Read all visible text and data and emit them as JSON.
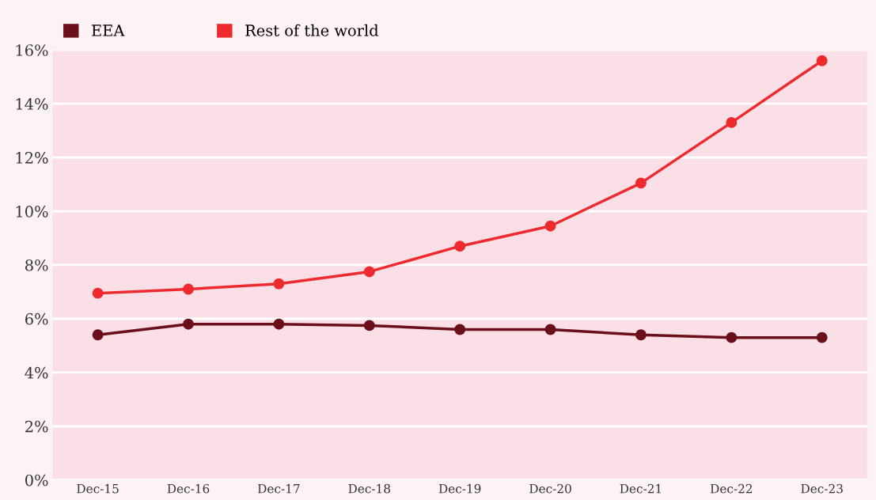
{
  "chart_data": {
    "type": "line",
    "categories": [
      "Dec-15",
      "Dec-16",
      "Dec-17",
      "Dec-18",
      "Dec-19",
      "Dec-20",
      "Dec-21",
      "Dec-22",
      "Dec-23"
    ],
    "series": [
      {
        "name": "EEA",
        "color": "#6b0f1a",
        "values": [
          5.4,
          5.8,
          5.8,
          5.75,
          5.6,
          5.6,
          5.4,
          5.3,
          5.3
        ]
      },
      {
        "name": "Rest of the world",
        "color": "#ee2a2f",
        "values": [
          6.95,
          7.1,
          7.3,
          7.75,
          8.7,
          9.45,
          11.05,
          13.3,
          15.6
        ]
      }
    ],
    "ylim": [
      0,
      16
    ],
    "yticks": [
      {
        "value": 0,
        "label": "0%"
      },
      {
        "value": 2,
        "label": "2%"
      },
      {
        "value": 4,
        "label": "4%"
      },
      {
        "value": 6,
        "label": "6%"
      },
      {
        "value": 8,
        "label": "8%"
      },
      {
        "value": 10,
        "label": "10%"
      },
      {
        "value": 12,
        "label": "12%"
      },
      {
        "value": 14,
        "label": "14%"
      },
      {
        "value": 16,
        "label": "16%"
      }
    ],
    "grid": "y",
    "legend": "top left",
    "marker": "circle",
    "line_style": "solid"
  }
}
